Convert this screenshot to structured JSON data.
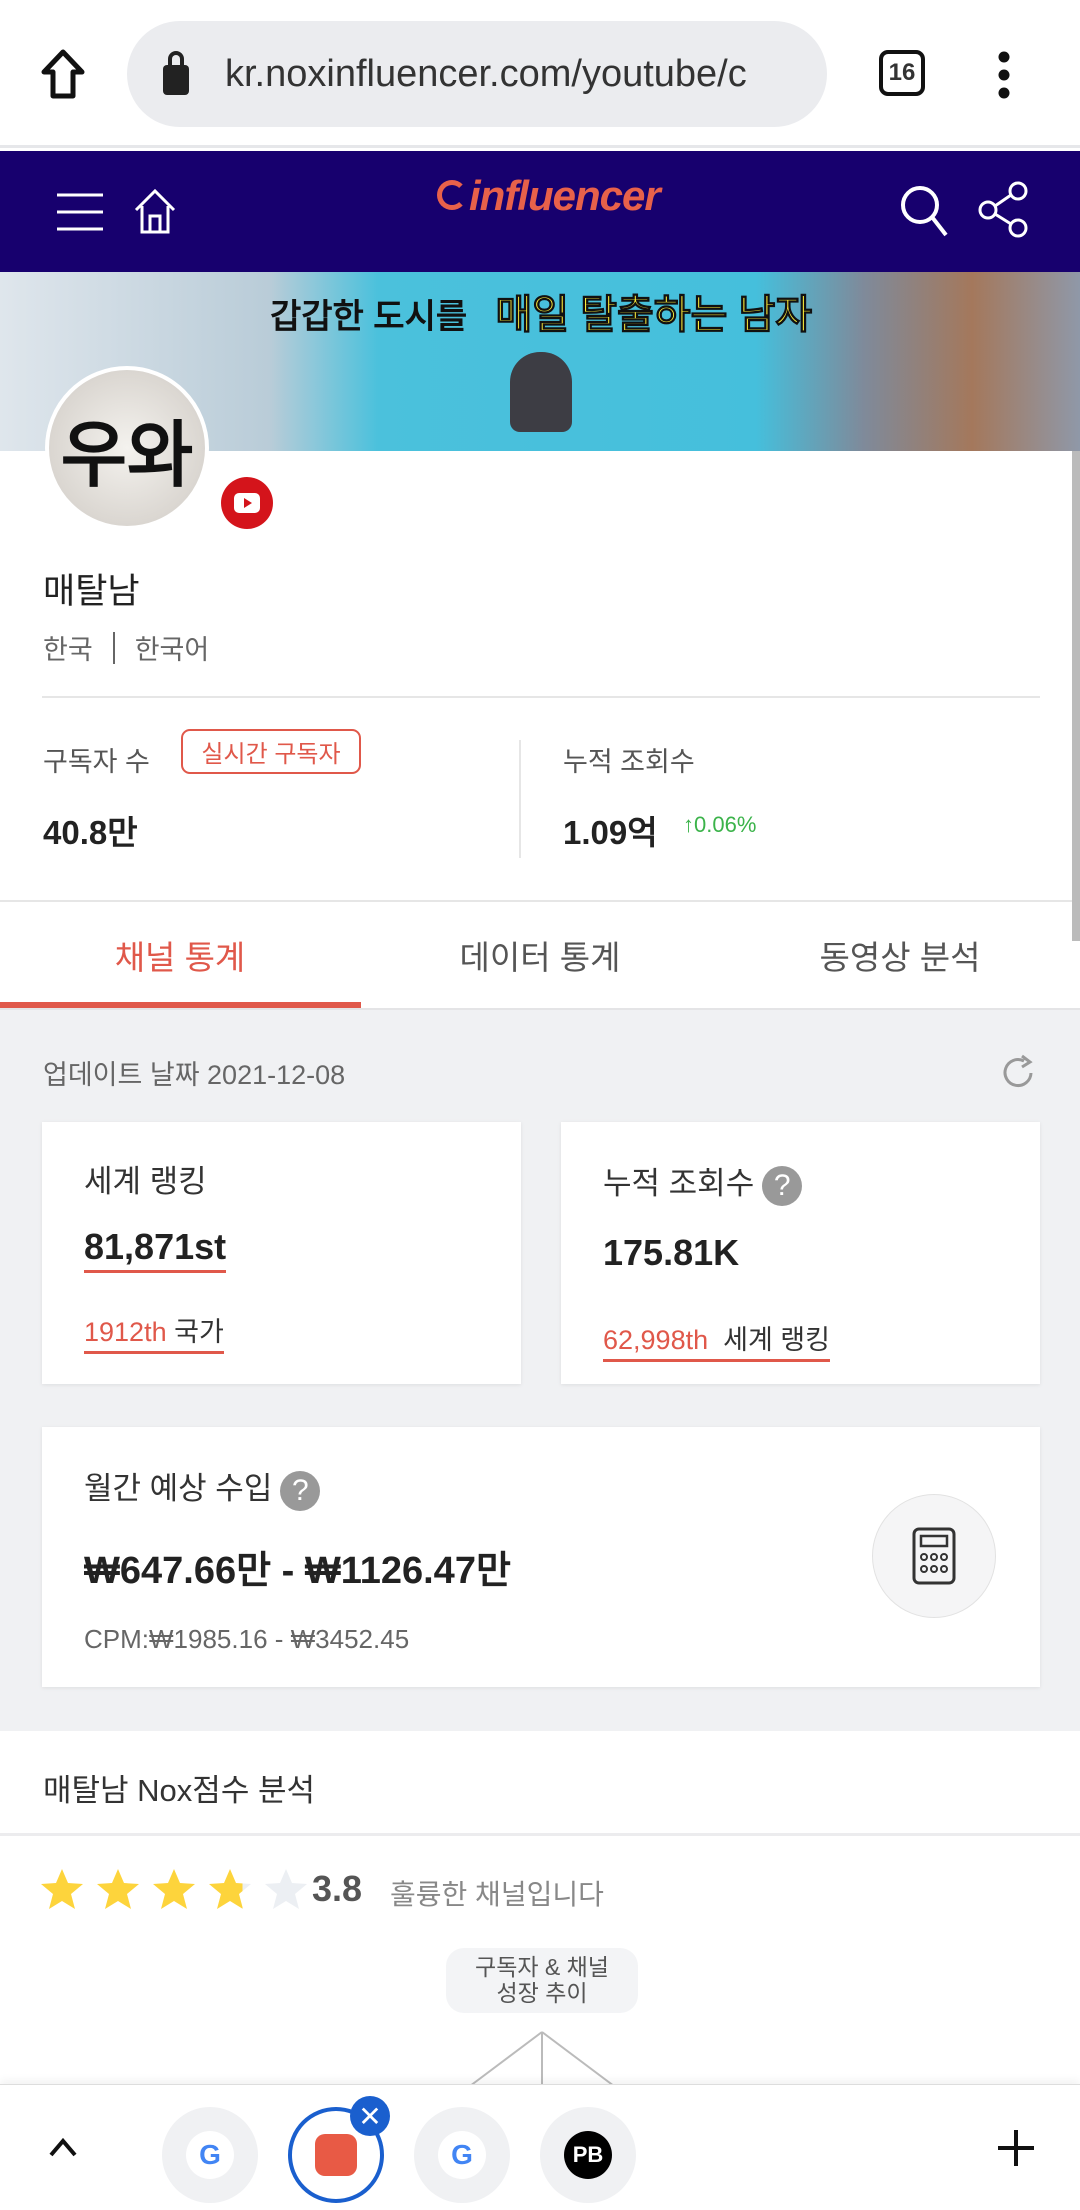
{
  "browser": {
    "url": "kr.noxinfluencer.com/youtube/c",
    "tab_count": "16"
  },
  "site": {
    "logo": "influencer",
    "brand_color": "#17006e",
    "accent_color": "#e0584a"
  },
  "banner": {
    "text_part1": "갑갑한 도시를",
    "text_part2": "매일 탈출하는 남자"
  },
  "channel": {
    "avatar_text": "우와",
    "name": "매탈남",
    "country": "한국",
    "language": "한국어",
    "platform_icon": "youtube-icon"
  },
  "stats": {
    "subscribers_label": "구독자 수",
    "realtime_badge": "실시간 구독자",
    "subscribers_value": "40.8만",
    "views_label": "누적 조회수",
    "views_value": "1.09억",
    "views_change": "0.06%"
  },
  "tabs": [
    {
      "label": "채널 통계",
      "active": true
    },
    {
      "label": "데이터 통계"
    },
    {
      "label": "동영상 분석"
    }
  ],
  "update": {
    "label": "업데이트 날짜 2021-12-08"
  },
  "cards": {
    "world_rank": {
      "label": "세계 랭킹",
      "value": "81,871st",
      "sub_value": "1912th",
      "sub_label": "국가"
    },
    "total_views": {
      "label": "누적 조회수",
      "value": "175.81K",
      "sub_value": "62,998th",
      "sub_label": "세계 랭킹"
    },
    "income": {
      "label": "월간 예상 수입",
      "value": "₩647.66만 - ₩1126.47만",
      "cpm": "CPM:₩1985.16 - ₩3452.45"
    }
  },
  "nox": {
    "title": "매탈남 Nox점수 분석",
    "rating": 3.8,
    "rating_text": "3.8",
    "rating_desc": "훌륭한 채널입니다",
    "bubble_line1": "구독자 & 채널",
    "bubble_line2": "성장 추이"
  },
  "bottom_tabs": [
    {
      "icon": "google-icon",
      "label": "G"
    },
    {
      "icon": "noxinfluencer-icon",
      "active": true
    },
    {
      "icon": "google-icon",
      "label": "G"
    },
    {
      "icon": "pb-icon",
      "label": "PB"
    }
  ]
}
